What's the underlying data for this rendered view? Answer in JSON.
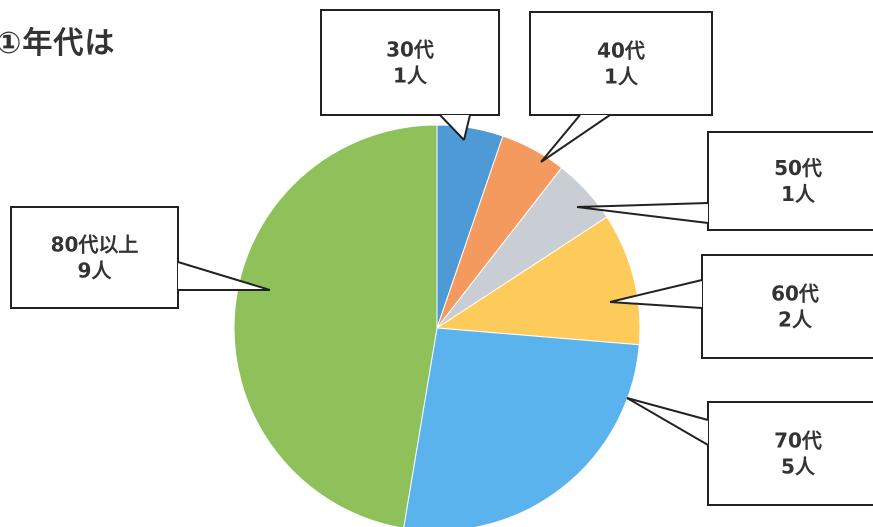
{
  "title": "①年代は",
  "chart_data": {
    "type": "pie",
    "title": "①年代は",
    "start_angle_deg": 0,
    "direction": "clockwise",
    "slices": [
      {
        "category": "30代",
        "count": 1,
        "label_line1": "30代",
        "label_line2": "1人",
        "color": "#4e9ad6"
      },
      {
        "category": "40代",
        "count": 1,
        "label_line1": "40代",
        "label_line2": "1人",
        "color": "#f49a5e"
      },
      {
        "category": "50代",
        "count": 1,
        "label_line1": "50代",
        "label_line2": "1人",
        "color": "#c9cdd4"
      },
      {
        "category": "60代",
        "count": 2,
        "label_line1": "60代",
        "label_line2": "2人",
        "color": "#fdcb5a"
      },
      {
        "category": "70代",
        "count": 5,
        "label_line1": "70代",
        "label_line2": "5人",
        "color": "#5ab3ec"
      },
      {
        "category": "80代以上",
        "count": 9,
        "label_line1": "80代以上",
        "label_line2": "9人",
        "color": "#8fc15a"
      }
    ]
  }
}
